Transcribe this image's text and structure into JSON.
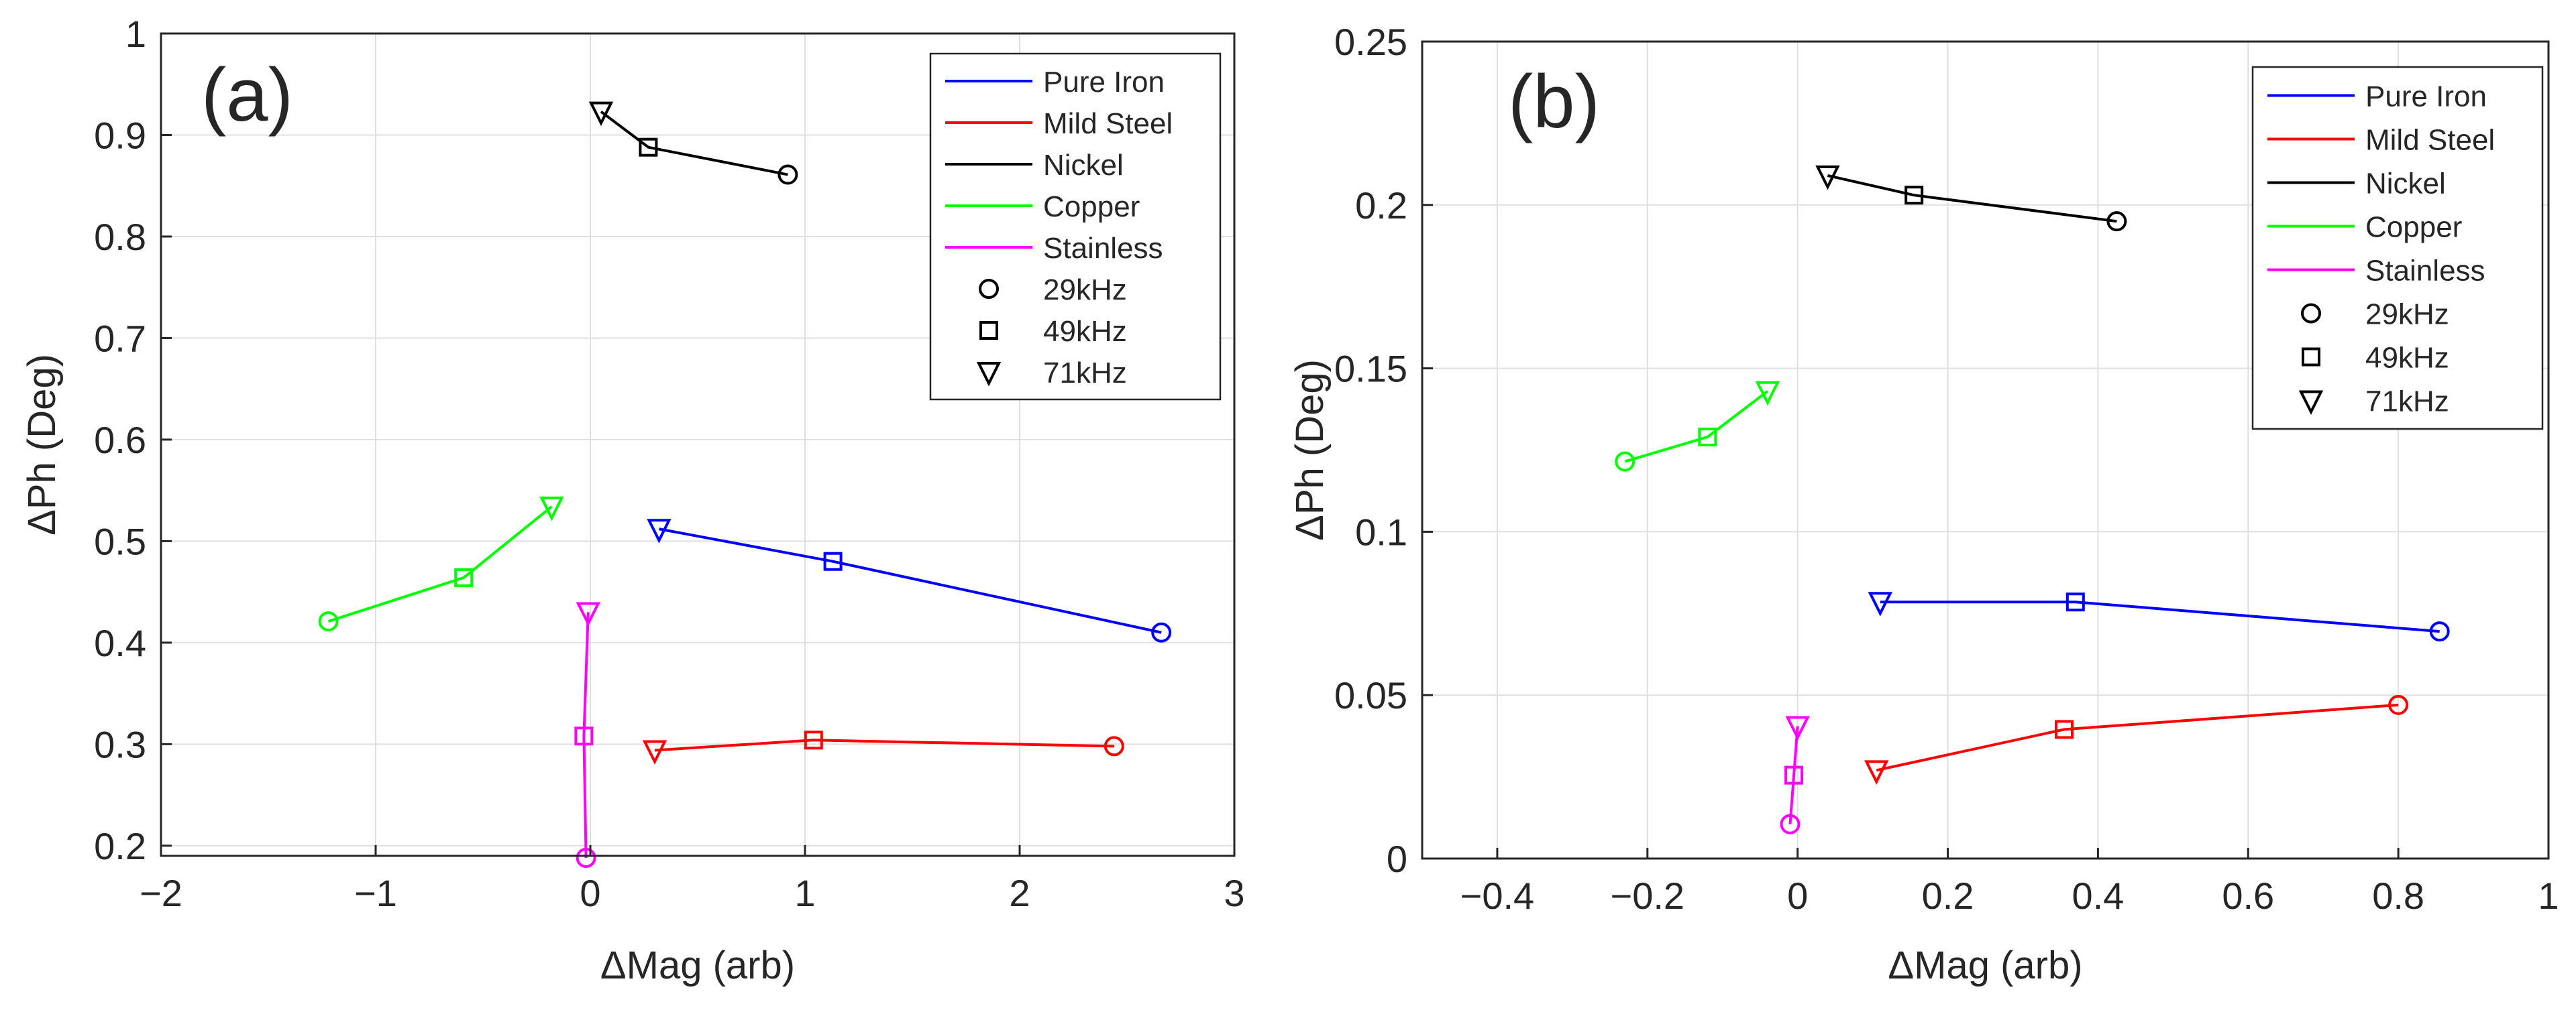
{
  "chart_data": [
    {
      "type": "line",
      "panel_label": "(a)",
      "xlabel": "ΔMag (arb)",
      "ylabel": "ΔPh (Deg)",
      "xlim": [
        -2,
        3
      ],
      "ylim": [
        0.19,
        1
      ],
      "xticks": [
        -2,
        -1,
        0,
        1,
        2,
        3
      ],
      "xtick_labels": [
        "−2",
        "−1",
        "0",
        "1",
        "2",
        "3"
      ],
      "yticks": [
        0.2,
        0.3,
        0.4,
        0.5,
        0.6,
        0.7,
        0.8,
        0.9,
        1
      ],
      "ytick_labels": [
        "0.2",
        "0.3",
        "0.4",
        "0.5",
        "0.6",
        "0.7",
        "0.8",
        "0.9",
        "1"
      ],
      "grid": true,
      "legend_position": "top-right",
      "series": [
        {
          "name": "Pure Iron",
          "color": "#0000ff",
          "points": [
            [
              2.66,
              0.41
            ],
            [
              1.13,
              0.48
            ],
            [
              0.32,
              0.512
            ]
          ]
        },
        {
          "name": "Mild Steel",
          "color": "#ff0000",
          "points": [
            [
              2.44,
              0.298
            ],
            [
              1.04,
              0.304
            ],
            [
              0.3,
              0.294
            ]
          ]
        },
        {
          "name": "Nickel",
          "color": "#000000",
          "points": [
            [
              0.92,
              0.861
            ],
            [
              0.27,
              0.888
            ],
            [
              0.05,
              0.923
            ]
          ]
        },
        {
          "name": "Copper",
          "color": "#00ff00",
          "points": [
            [
              -1.22,
              0.421
            ],
            [
              -0.59,
              0.464
            ],
            [
              -0.18,
              0.534
            ]
          ]
        },
        {
          "name": "Stainless",
          "color": "#ff00ff",
          "points": [
            [
              -0.02,
              0.188
            ],
            [
              -0.03,
              0.308
            ],
            [
              -0.01,
              0.43
            ]
          ]
        }
      ]
    },
    {
      "type": "line",
      "panel_label": "(b)",
      "xlabel": "ΔMag (arb)",
      "ylabel": "ΔPh (Deg)",
      "xlim": [
        -0.5,
        1
      ],
      "ylim": [
        0,
        0.25
      ],
      "xticks": [
        -0.4,
        -0.2,
        0,
        0.2,
        0.4,
        0.6,
        0.8,
        1
      ],
      "xtick_labels": [
        "−0.4",
        "−0.2",
        "0",
        "0.2",
        "0.4",
        "0.6",
        "0.8",
        "1"
      ],
      "yticks": [
        0,
        0.05,
        0.1,
        0.15,
        0.2,
        0.25
      ],
      "ytick_labels": [
        "0",
        "0.05",
        "0.1",
        "0.15",
        "0.2",
        "0.25"
      ],
      "grid": true,
      "legend_position": "top-right",
      "series": [
        {
          "name": "Pure Iron",
          "color": "#0000ff",
          "points": [
            [
              0.855,
              0.0695
            ],
            [
              0.37,
              0.0785
            ],
            [
              0.11,
              0.0785
            ]
          ]
        },
        {
          "name": "Mild Steel",
          "color": "#ff0000",
          "points": [
            [
              0.8,
              0.047
            ],
            [
              0.355,
              0.0395
            ],
            [
              0.105,
              0.027
            ]
          ]
        },
        {
          "name": "Nickel",
          "color": "#000000",
          "points": [
            [
              0.425,
              0.195
            ],
            [
              0.155,
              0.203
            ],
            [
              0.04,
              0.209
            ]
          ]
        },
        {
          "name": "Copper",
          "color": "#00ff00",
          "points": [
            [
              -0.23,
              0.1215
            ],
            [
              -0.12,
              0.129
            ],
            [
              -0.04,
              0.143
            ]
          ]
        },
        {
          "name": "Stainless",
          "color": "#ff00ff",
          "points": [
            [
              -0.01,
              0.0105
            ],
            [
              -0.005,
              0.0255
            ],
            [
              0.0,
              0.0405
            ]
          ]
        }
      ]
    }
  ],
  "marker_legend": [
    {
      "label": "29kHz",
      "marker": "circle"
    },
    {
      "label": "49kHz",
      "marker": "square"
    },
    {
      "label": "71kHz",
      "marker": "triangle-down"
    }
  ]
}
